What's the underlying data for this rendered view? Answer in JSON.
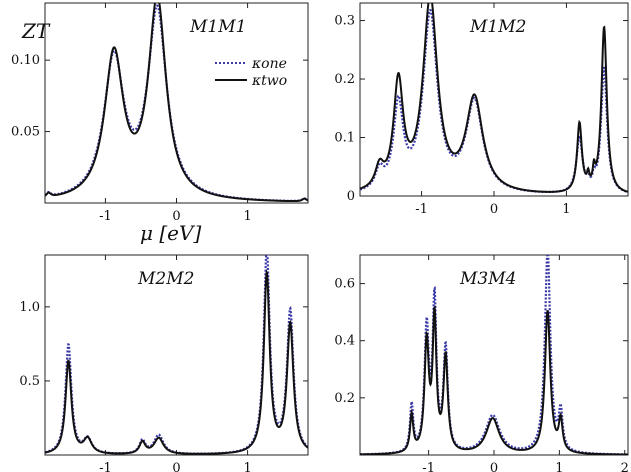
{
  "figure": {
    "y_label": "ZT",
    "x_label": "μ [eV]",
    "colors": {
      "one": "#3a3aa8",
      "two": "#111111",
      "axis": "#222222"
    }
  },
  "legend": {
    "entries": [
      {
        "series": "one",
        "label": "κone",
        "style": "dotted"
      },
      {
        "series": "two",
        "label": "κtwo",
        "style": "solid"
      }
    ]
  },
  "chart_data": [
    {
      "type": "line",
      "title": "M1M1",
      "xlim": [
        -1.85,
        1.85
      ],
      "ylim": [
        0,
        0.14
      ],
      "xticks": [
        -1,
        0,
        1
      ],
      "yticks": [
        0.05,
        0.1
      ],
      "ytick_labels": [
        "0.05",
        "0.10"
      ],
      "series": [
        {
          "name": "κone",
          "key": "one",
          "peaks": [
            [
              -1.8,
              0.003,
              0.04
            ],
            [
              -0.88,
              0.098,
              0.17
            ],
            [
              -0.27,
              0.131,
              0.16
            ],
            [
              1.8,
              0.002,
              0.04
            ]
          ]
        },
        {
          "name": "κtwo",
          "key": "two",
          "peaks": [
            [
              -1.8,
              0.003,
              0.04
            ],
            [
              -0.88,
              0.101,
              0.16
            ],
            [
              -0.27,
              0.139,
              0.15
            ],
            [
              1.8,
              0.002,
              0.04
            ]
          ]
        }
      ]
    },
    {
      "type": "line",
      "title": "M1M2",
      "xlim": [
        -1.85,
        1.85
      ],
      "ylim": [
        0,
        0.33
      ],
      "xticks": [
        -1,
        0,
        1
      ],
      "yticks": [
        0,
        0.1,
        0.2,
        0.3
      ],
      "ytick_labels": [
        "0",
        "0.1",
        "0.2",
        "0.3"
      ],
      "series": [
        {
          "name": "κone",
          "key": "one",
          "peaks": [
            [
              -1.58,
              0.033,
              0.07
            ],
            [
              -1.32,
              0.145,
              0.08
            ],
            [
              -0.88,
              0.305,
              0.12
            ],
            [
              -0.27,
              0.155,
              0.14
            ],
            [
              1.18,
              0.095,
              0.05
            ],
            [
              1.3,
              0.015,
              0.02
            ],
            [
              1.38,
              0.02,
              0.02
            ],
            [
              1.52,
              0.215,
              0.05
            ]
          ]
        },
        {
          "name": "κtwo",
          "key": "two",
          "peaks": [
            [
              -1.58,
              0.036,
              0.07
            ],
            [
              -1.32,
              0.182,
              0.08
            ],
            [
              -0.88,
              0.33,
              0.12
            ],
            [
              -0.27,
              0.16,
              0.14
            ],
            [
              1.18,
              0.118,
              0.04
            ],
            [
              1.3,
              0.02,
              0.02
            ],
            [
              1.38,
              0.028,
              0.02
            ],
            [
              1.52,
              0.285,
              0.045
            ]
          ]
        }
      ]
    },
    {
      "type": "line",
      "title": "M2M2",
      "xlim": [
        -1.85,
        1.85
      ],
      "ylim": [
        0,
        1.35
      ],
      "xticks": [
        -1,
        0,
        1
      ],
      "yticks": [
        0.5,
        1.0
      ],
      "ytick_labels": [
        "0.5",
        "1.0"
      ],
      "series": [
        {
          "name": "κone",
          "key": "one",
          "peaks": [
            [
              -1.52,
              0.74,
              0.05
            ],
            [
              -1.25,
              0.1,
              0.07
            ],
            [
              -0.48,
              0.09,
              0.05
            ],
            [
              -0.25,
              0.13,
              0.08
            ],
            [
              1.27,
              1.37,
              0.05
            ],
            [
              1.6,
              0.96,
              0.055
            ]
          ]
        },
        {
          "name": "κtwo",
          "key": "two",
          "peaks": [
            [
              -1.52,
              0.63,
              0.05
            ],
            [
              -1.25,
              0.1,
              0.07
            ],
            [
              -0.48,
              0.08,
              0.05
            ],
            [
              -0.25,
              0.11,
              0.08
            ],
            [
              1.27,
              1.21,
              0.05
            ],
            [
              1.6,
              0.87,
              0.055
            ]
          ]
        }
      ]
    },
    {
      "type": "line",
      "title": "M3M4",
      "xlim": [
        -2.05,
        2.05
      ],
      "ylim": [
        0,
        0.7
      ],
      "xticks": [
        -1,
        0,
        1,
        2
      ],
      "yticks": [
        0.2,
        0.4,
        0.6
      ],
      "ytick_labels": [
        "0.2",
        "0.4",
        "0.6"
      ],
      "series": [
        {
          "name": "κone",
          "key": "one",
          "peaks": [
            [
              -1.26,
              0.165,
              0.03
            ],
            [
              -1.03,
              0.43,
              0.04
            ],
            [
              -0.91,
              0.52,
              0.035
            ],
            [
              -0.74,
              0.36,
              0.04
            ],
            [
              -0.02,
              0.135,
              0.13
            ],
            [
              0.82,
              0.71,
              0.05
            ],
            [
              1.02,
              0.135,
              0.035
            ]
          ]
        },
        {
          "name": "κtwo",
          "key": "two",
          "peaks": [
            [
              -1.26,
              0.13,
              0.03
            ],
            [
              -1.03,
              0.38,
              0.04
            ],
            [
              -0.91,
              0.46,
              0.035
            ],
            [
              -0.74,
              0.33,
              0.04
            ],
            [
              -0.02,
              0.125,
              0.12
            ],
            [
              0.82,
              0.5,
              0.05
            ],
            [
              1.02,
              0.11,
              0.035
            ]
          ]
        }
      ]
    }
  ]
}
